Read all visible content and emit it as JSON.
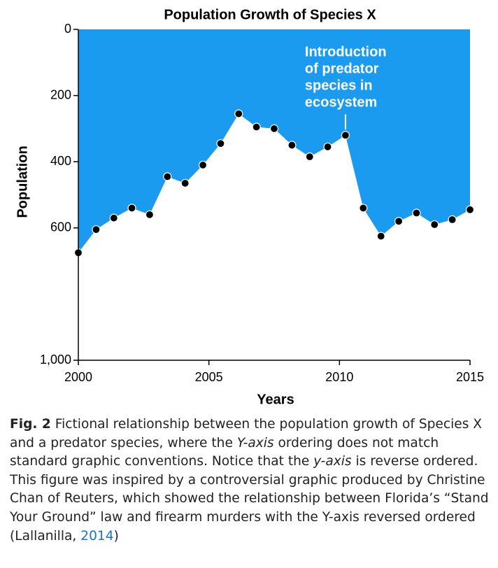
{
  "chart_data": {
    "type": "area",
    "title": "Population Growth of Species X",
    "x_label": "Years",
    "y_label": "Population",
    "x": [
      2000,
      2000.68,
      2001.36,
      2002.05,
      2002.73,
      2003.41,
      2004.09,
      2004.77,
      2005.45,
      2006.14,
      2006.82,
      2007.5,
      2008.18,
      2008.86,
      2009.55,
      2010.23,
      2010.91,
      2011.59,
      2012.27,
      2012.95,
      2013.64,
      2014.32,
      2015
    ],
    "values": [
      675,
      605,
      570,
      540,
      560,
      445,
      465,
      410,
      345,
      255,
      295,
      300,
      350,
      385,
      355,
      320,
      540,
      625,
      580,
      555,
      590,
      575,
      545
    ],
    "color": "#1a9bef",
    "marker_color": "#000000",
    "xlim": [
      2000,
      2015
    ],
    "xticks": [
      2000,
      2005,
      2010,
      2015
    ],
    "ylim": [
      0,
      1000
    ],
    "y_reversed": true,
    "yticks": [
      0,
      200,
      400,
      600,
      {
        "value": 1000,
        "label": "1,000"
      }
    ],
    "annotation": {
      "lines": [
        "Introduction",
        "of predator",
        "species in",
        "ecosystem"
      ],
      "point": 15
    }
  },
  "caption": {
    "label": "Fig. 2",
    "parts": [
      " Fictional relationship between the population growth of Species X and a predator species, where the ",
      "Y-axis",
      " ordering does not match standard graphic conventions. Notice that the ",
      "y-axis",
      " is reverse ordered. This figure was inspired by a controversial graphic produced by Christine Chan of Reuters, which showed the relationship between Florida’s “Stand Your Ground” law and firearm murders with the Y-axis reversed ordered (Lallanilla, ",
      "2014",
      ")"
    ]
  }
}
